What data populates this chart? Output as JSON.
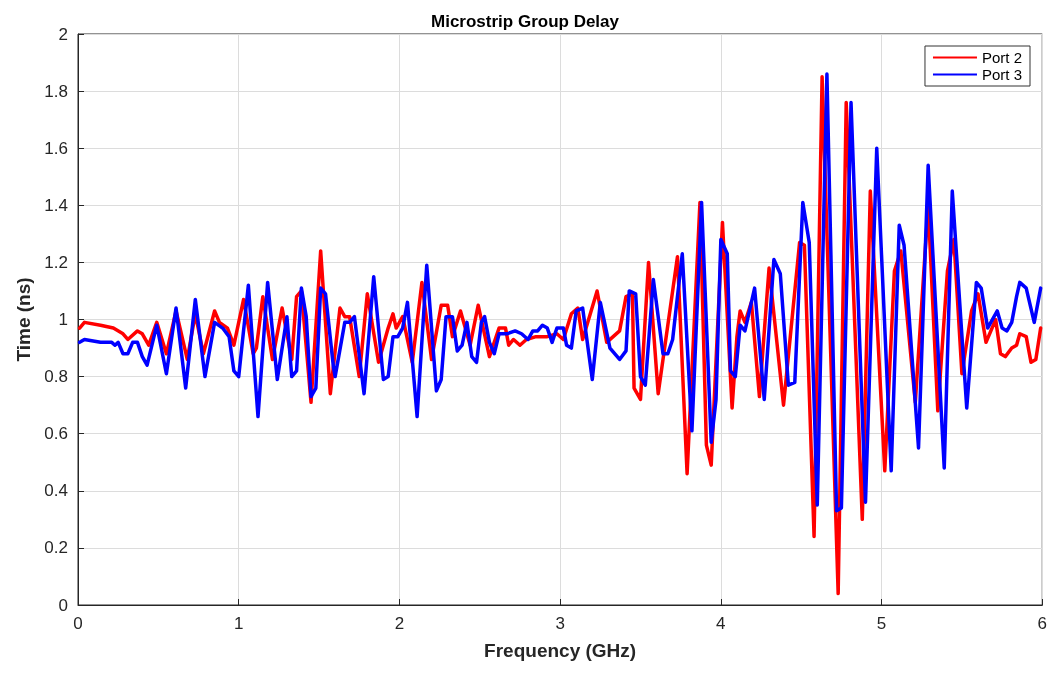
{
  "chart_data": {
    "type": "line",
    "title": "Microstrip Group Delay",
    "xlabel": "Frequency (GHz)",
    "ylabel": "Time (ns)",
    "xlim": [
      0,
      6
    ],
    "xticks": [
      0,
      1,
      2,
      3,
      4,
      5,
      6
    ],
    "ylim": [
      0,
      2
    ],
    "yticks": [
      0,
      0.2,
      0.4,
      0.6,
      0.8,
      1,
      1.2,
      1.4,
      1.6,
      1.8,
      2
    ],
    "grid": true,
    "legend": "top right",
    "marker": "none",
    "line_style": "solid",
    "series": [
      {
        "name": "Port 2",
        "color": "#ff0000",
        "x": [
          0.01,
          0.04,
          0.14,
          0.22,
          0.28,
          0.31,
          0.37,
          0.4,
          0.44,
          0.49,
          0.55,
          0.61,
          0.68,
          0.73,
          0.78,
          0.85,
          0.88,
          0.93,
          0.97,
          1.03,
          1.09,
          1.11,
          1.15,
          1.21,
          1.27,
          1.33,
          1.36,
          1.39,
          1.45,
          1.51,
          1.57,
          1.63,
          1.66,
          1.69,
          1.75,
          1.8,
          1.87,
          1.93,
          1.96,
          1.98,
          2.02,
          2.08,
          2.14,
          2.2,
          2.26,
          2.3,
          2.33,
          2.38,
          2.44,
          2.49,
          2.56,
          2.62,
          2.66,
          2.68,
          2.71,
          2.75,
          2.79,
          2.85,
          2.92,
          2.98,
          3.02,
          3.07,
          3.11,
          3.14,
          3.23,
          3.29,
          3.33,
          3.37,
          3.41,
          3.45,
          3.46,
          3.5,
          3.55,
          3.61,
          3.73,
          3.79,
          3.87,
          3.91,
          3.94,
          4.01,
          4.07,
          4.1,
          4.12,
          4.15,
          4.19,
          4.24,
          4.3,
          4.39,
          4.49,
          4.52,
          4.58,
          4.63,
          4.73,
          4.78,
          4.88,
          4.93,
          5.02,
          5.08,
          5.12,
          5.21,
          5.29,
          5.35,
          5.41,
          5.45,
          5.5,
          5.56,
          5.6,
          5.65,
          5.71,
          5.74,
          5.77,
          5.81,
          5.84,
          5.86,
          5.9,
          5.93,
          5.96,
          5.99
        ],
        "values": [
          0.97,
          0.99,
          0.98,
          0.97,
          0.95,
          0.93,
          0.96,
          0.95,
          0.91,
          0.99,
          0.88,
          1.03,
          0.86,
          1.02,
          0.88,
          1.03,
          0.99,
          0.97,
          0.91,
          1.07,
          0.88,
          0.9,
          1.08,
          0.86,
          1.04,
          0.86,
          1.08,
          1.1,
          0.71,
          1.24,
          0.74,
          1.04,
          1.01,
          1.01,
          0.8,
          1.09,
          0.85,
          0.97,
          1.02,
          0.97,
          1.01,
          0.85,
          1.13,
          0.86,
          1.05,
          1.05,
          0.94,
          1.03,
          0.91,
          1.05,
          0.87,
          0.97,
          0.97,
          0.91,
          0.93,
          0.91,
          0.93,
          0.94,
          0.94,
          0.95,
          0.93,
          1.02,
          1.04,
          0.93,
          1.1,
          0.92,
          0.94,
          0.96,
          1.08,
          1.09,
          0.76,
          0.72,
          1.2,
          0.74,
          1.22,
          0.46,
          1.41,
          0.56,
          0.49,
          1.34,
          0.69,
          0.94,
          1.03,
          0.99,
          1.06,
          0.73,
          1.18,
          0.7,
          1.27,
          1.26,
          0.24,
          1.85,
          0.04,
          1.76,
          0.3,
          1.45,
          0.47,
          1.17,
          1.24,
          0.71,
          1.4,
          0.68,
          1.17,
          1.28,
          0.81,
          1.03,
          1.09,
          0.92,
          1.0,
          0.88,
          0.87,
          0.9,
          0.91,
          0.95,
          0.94,
          0.85,
          0.86,
          0.97
        ]
      },
      {
        "name": "Port 3",
        "color": "#0000ff",
        "x": [
          0.01,
          0.04,
          0.14,
          0.21,
          0.23,
          0.25,
          0.28,
          0.31,
          0.34,
          0.37,
          0.4,
          0.43,
          0.49,
          0.55,
          0.61,
          0.67,
          0.73,
          0.79,
          0.85,
          0.9,
          0.94,
          0.97,
          1.0,
          1.06,
          1.12,
          1.18,
          1.24,
          1.3,
          1.33,
          1.36,
          1.39,
          1.42,
          1.45,
          1.48,
          1.51,
          1.54,
          1.59,
          1.6,
          1.66,
          1.69,
          1.72,
          1.78,
          1.84,
          1.9,
          1.93,
          1.96,
          1.99,
          2.02,
          2.05,
          2.11,
          2.17,
          2.23,
          2.26,
          2.29,
          2.33,
          2.36,
          2.39,
          2.42,
          2.45,
          2.48,
          2.51,
          2.53,
          2.56,
          2.59,
          2.62,
          2.67,
          2.72,
          2.76,
          2.8,
          2.83,
          2.86,
          2.89,
          2.92,
          2.95,
          2.98,
          3.02,
          3.04,
          3.07,
          3.1,
          3.14,
          3.2,
          3.25,
          3.31,
          3.37,
          3.41,
          3.43,
          3.47,
          3.5,
          3.53,
          3.58,
          3.64,
          3.67,
          3.7,
          3.76,
          3.82,
          3.88,
          3.94,
          3.97,
          4.0,
          4.04,
          4.06,
          4.09,
          4.12,
          4.15,
          4.21,
          4.27,
          4.33,
          4.37,
          4.42,
          4.46,
          4.51,
          4.55,
          4.6,
          4.66,
          4.72,
          4.75,
          4.81,
          4.9,
          4.97,
          5.06,
          5.11,
          5.14,
          5.23,
          5.29,
          5.39,
          5.44,
          5.53,
          5.59,
          5.62,
          5.66,
          5.72,
          5.75,
          5.78,
          5.81,
          5.84,
          5.86,
          5.9,
          5.95,
          5.99
        ],
        "values": [
          0.92,
          0.93,
          0.92,
          0.92,
          0.91,
          0.92,
          0.88,
          0.88,
          0.92,
          0.92,
          0.87,
          0.84,
          0.98,
          0.81,
          1.04,
          0.76,
          1.07,
          0.8,
          0.99,
          0.97,
          0.94,
          0.82,
          0.8,
          1.12,
          0.66,
          1.13,
          0.79,
          1.01,
          0.8,
          0.82,
          1.11,
          1.01,
          0.73,
          0.76,
          1.11,
          1.09,
          0.83,
          0.8,
          0.99,
          0.99,
          1.01,
          0.74,
          1.15,
          0.79,
          0.8,
          0.94,
          0.94,
          0.97,
          1.06,
          0.66,
          1.19,
          0.75,
          0.79,
          1.01,
          1.01,
          0.89,
          0.91,
          0.99,
          0.87,
          0.85,
          0.99,
          1.01,
          0.92,
          0.88,
          0.95,
          0.95,
          0.96,
          0.95,
          0.93,
          0.96,
          0.96,
          0.98,
          0.97,
          0.92,
          0.97,
          0.97,
          0.91,
          0.9,
          1.03,
          1.04,
          0.79,
          1.06,
          0.9,
          0.86,
          0.89,
          1.1,
          1.09,
          0.8,
          0.77,
          1.14,
          0.88,
          0.88,
          0.93,
          1.23,
          0.61,
          1.41,
          0.57,
          0.72,
          1.28,
          1.23,
          0.82,
          0.8,
          0.98,
          0.96,
          1.11,
          0.72,
          1.21,
          1.16,
          0.77,
          0.78,
          1.41,
          1.27,
          0.35,
          1.86,
          0.33,
          0.34,
          1.76,
          0.36,
          1.6,
          0.47,
          1.33,
          1.26,
          0.55,
          1.54,
          0.48,
          1.45,
          0.69,
          1.13,
          1.11,
          0.97,
          1.03,
          0.97,
          0.96,
          0.99,
          1.08,
          1.13,
          1.11,
          0.99,
          1.11
        ]
      }
    ]
  }
}
